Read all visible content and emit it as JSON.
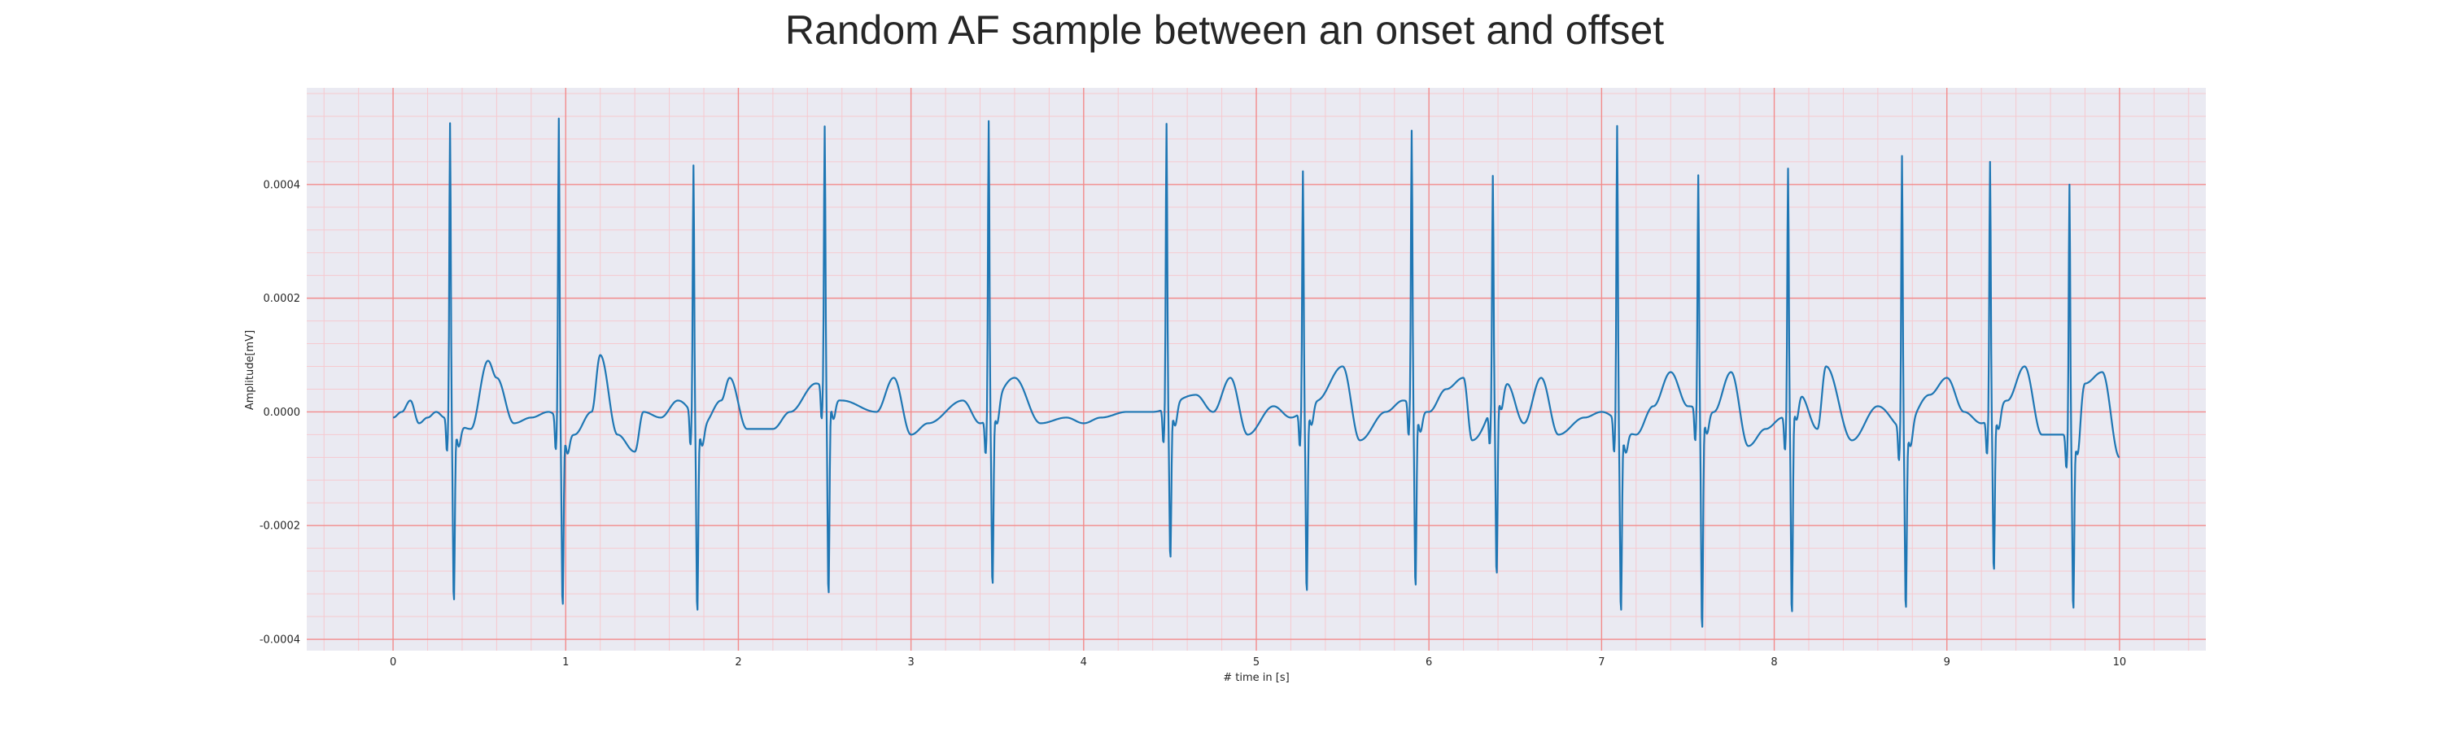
{
  "chart_data": {
    "type": "line",
    "title": "Random AF sample between an onset and offset",
    "xlabel": "# time in [s]",
    "ylabel": "Amplitude[mV]",
    "xlim": [
      -0.5,
      10.5
    ],
    "ylim": [
      -0.00042,
      0.00057
    ],
    "xticks": [
      0,
      1,
      2,
      3,
      4,
      5,
      6,
      7,
      8,
      9,
      10
    ],
    "xtick_labels": [
      "0",
      "1",
      "2",
      "3",
      "4",
      "5",
      "6",
      "7",
      "8",
      "9",
      "10"
    ],
    "yticks": [
      -0.0004,
      -0.0002,
      0.0,
      0.0002,
      0.0004
    ],
    "ytick_labels": [
      "-0.0004",
      "-0.0002",
      "0.0000",
      "0.0002",
      "0.0004"
    ],
    "grid": true,
    "minor_grid": true,
    "legend": "none",
    "colors": {
      "line": "#1f77b4",
      "plot_background": "#eaeaf2",
      "major_grid": "#f28b8b",
      "minor_grid": "#f6c9cf"
    },
    "series": [
      {
        "sample_rate_hz": 300,
        "baseline": [
          [
            0.0,
            -1e-05
          ],
          [
            0.05,
            0.0
          ],
          [
            0.1,
            2e-05
          ],
          [
            0.15,
            -2e-05
          ],
          [
            0.2,
            -1e-05
          ],
          [
            0.25,
            0.0
          ],
          [
            0.3,
            -1e-05
          ],
          [
            0.45,
            -3e-05
          ],
          [
            0.55,
            9e-05
          ],
          [
            0.6,
            6e-05
          ],
          [
            0.7,
            -2e-05
          ],
          [
            0.8,
            -1e-05
          ],
          [
            0.9,
            0.0
          ],
          [
            1.05,
            -4e-05
          ],
          [
            1.15,
            0.0
          ],
          [
            1.2,
            0.0001
          ],
          [
            1.3,
            -4e-05
          ],
          [
            1.4,
            -7e-05
          ],
          [
            1.45,
            0.0
          ],
          [
            1.55,
            -1e-05
          ],
          [
            1.65,
            2e-05
          ],
          [
            1.8,
            -2e-05
          ],
          [
            1.9,
            2e-05
          ],
          [
            1.95,
            6e-05
          ],
          [
            2.05,
            -3e-05
          ],
          [
            2.2,
            -3e-05
          ],
          [
            2.3,
            0.0
          ],
          [
            2.45,
            5e-05
          ],
          [
            2.6,
            2e-05
          ],
          [
            2.8,
            0.0
          ],
          [
            2.9,
            6e-05
          ],
          [
            3.0,
            -4e-05
          ],
          [
            3.1,
            -2e-05
          ],
          [
            3.3,
            2e-05
          ],
          [
            3.4,
            -2e-05
          ],
          [
            3.6,
            6e-05
          ],
          [
            3.75,
            -2e-05
          ],
          [
            3.9,
            -1e-05
          ],
          [
            4.0,
            -2e-05
          ],
          [
            4.1,
            -1e-05
          ],
          [
            4.25,
            0.0
          ],
          [
            4.4,
            0.0
          ],
          [
            4.65,
            3e-05
          ],
          [
            4.75,
            0.0
          ],
          [
            4.85,
            6e-05
          ],
          [
            4.95,
            -4e-05
          ],
          [
            5.1,
            1e-05
          ],
          [
            5.2,
            -1e-05
          ],
          [
            5.35,
            2e-05
          ],
          [
            5.5,
            8e-05
          ],
          [
            5.6,
            -5e-05
          ],
          [
            5.75,
            0.0
          ],
          [
            5.85,
            2e-05
          ],
          [
            6.0,
            0.0
          ],
          [
            6.1,
            4e-05
          ],
          [
            6.2,
            6e-05
          ],
          [
            6.25,
            -5e-05
          ],
          [
            6.45,
            5e-05
          ],
          [
            6.55,
            -2e-05
          ],
          [
            6.65,
            6e-05
          ],
          [
            6.75,
            -4e-05
          ],
          [
            6.9,
            -1e-05
          ],
          [
            7.0,
            0.0
          ],
          [
            7.2,
            -4e-05
          ],
          [
            7.3,
            1e-05
          ],
          [
            7.4,
            7e-05
          ],
          [
            7.5,
            1e-05
          ],
          [
            7.65,
            0.0
          ],
          [
            7.75,
            7e-05
          ],
          [
            7.85,
            -6e-05
          ],
          [
            7.95,
            -3e-05
          ],
          [
            8.05,
            -1e-05
          ],
          [
            8.15,
            3e-05
          ],
          [
            8.25,
            -3e-05
          ],
          [
            8.3,
            8e-05
          ],
          [
            8.45,
            -5e-05
          ],
          [
            8.6,
            1e-05
          ],
          [
            8.75,
            -3e-05
          ],
          [
            8.9,
            3e-05
          ],
          [
            9.0,
            6e-05
          ],
          [
            9.1,
            0.0
          ],
          [
            9.2,
            -2e-05
          ],
          [
            9.35,
            2e-05
          ],
          [
            9.45,
            8e-05
          ],
          [
            9.55,
            -4e-05
          ],
          [
            9.65,
            -4e-05
          ],
          [
            9.75,
            -4e-05
          ],
          [
            9.8,
            5e-05
          ],
          [
            9.9,
            7e-05
          ],
          [
            10.0,
            -8e-05
          ]
        ],
        "beats": [
          [
            0.33,
            0.00052,
            -0.00031
          ],
          [
            0.96,
            0.00053,
            -0.00031
          ],
          [
            1.74,
            0.00044,
            -0.00033
          ],
          [
            2.5,
            0.00046,
            -0.00035
          ],
          [
            3.45,
            0.00052,
            -0.0003
          ],
          [
            4.48,
            0.0005,
            -0.00026
          ],
          [
            5.27,
            0.00042,
            -0.00032
          ],
          [
            5.9,
            0.00048,
            -0.00031
          ],
          [
            6.37,
            0.0004,
            -0.00031
          ],
          [
            7.09,
            0.00052,
            -0.00032
          ],
          [
            7.56,
            0.00041,
            -0.00038
          ],
          [
            8.08,
            0.00043,
            -0.00036
          ],
          [
            8.74,
            0.00048,
            -0.00031
          ],
          [
            9.25,
            0.00045,
            -0.00027
          ],
          [
            9.71,
            0.00044,
            -0.0003
          ]
        ]
      }
    ]
  }
}
